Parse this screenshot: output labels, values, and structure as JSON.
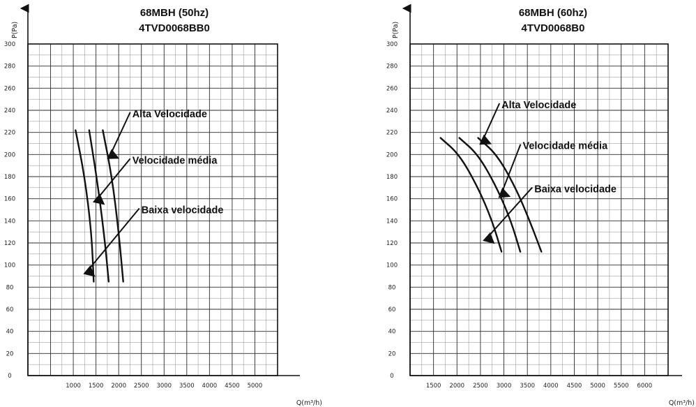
{
  "chart_data": [
    {
      "type": "line",
      "title": "68MBH (50hz)",
      "subtitle": "4TVD0068BB0",
      "xlabel": "Q(m³/h)",
      "ylabel": "P(Pa)",
      "x_ticks": [
        1000,
        1500,
        2000,
        2500,
        3000,
        3500,
        4000,
        4500,
        5000
      ],
      "y_ticks": [
        0,
        20,
        40,
        60,
        80,
        100,
        120,
        140,
        160,
        180,
        200,
        220,
        240,
        260,
        280,
        300
      ],
      "xlim": [
        0,
        5500
      ],
      "ylim": [
        0,
        300
      ],
      "grid": true,
      "series": [
        {
          "name": "Baixa velocidade",
          "x": [
            1050,
            1250,
            1400,
            1450
          ],
          "y": [
            222,
            180,
            130,
            85
          ]
        },
        {
          "name": "Velocidade média",
          "x": [
            1350,
            1550,
            1700,
            1780
          ],
          "y": [
            222,
            170,
            120,
            85
          ]
        },
        {
          "name": "Alta Velocidade",
          "x": [
            1650,
            1850,
            2000,
            2100
          ],
          "y": [
            222,
            180,
            130,
            85
          ]
        }
      ],
      "annotations": [
        {
          "text": "Alta Velocidade",
          "x": 2300,
          "y": 237,
          "target": [
            1820,
            200
          ]
        },
        {
          "text": "Velocidade média",
          "x": 2300,
          "y": 195,
          "target": [
            1530,
            160
          ]
        },
        {
          "text": "Baixa velocidade",
          "x": 2500,
          "y": 150,
          "target": [
            1320,
            95
          ]
        }
      ]
    },
    {
      "type": "line",
      "title": "68MBH (60hz)",
      "subtitle": "4TVD0068B0",
      "xlabel": "Q(m³/h)",
      "ylabel": "P(Pa)",
      "x_ticks": [
        1500,
        2000,
        2500,
        3000,
        3500,
        4000,
        4500,
        5000,
        5500,
        6000
      ],
      "y_ticks": [
        0,
        20,
        40,
        60,
        80,
        100,
        120,
        140,
        160,
        180,
        200,
        220,
        240,
        260,
        280,
        300
      ],
      "xlim": [
        1000,
        6500
      ],
      "ylim": [
        0,
        300
      ],
      "grid": true,
      "series": [
        {
          "name": "Baixa velocidade",
          "x": [
            1650,
            2050,
            2450,
            2750,
            2950
          ],
          "y": [
            215,
            200,
            170,
            140,
            112
          ]
        },
        {
          "name": "Velocidade média",
          "x": [
            2050,
            2450,
            2850,
            3150,
            3350
          ],
          "y": [
            215,
            200,
            170,
            140,
            112
          ]
        },
        {
          "name": "Alta Velocidade",
          "x": [
            2450,
            2850,
            3250,
            3550,
            3800
          ],
          "y": [
            215,
            200,
            170,
            140,
            112
          ]
        }
      ],
      "annotations": [
        {
          "text": "Alta Velocidade",
          "x": 2950,
          "y": 245,
          "target": [
            2550,
            213
          ]
        },
        {
          "text": "Velocidade média",
          "x": 3400,
          "y": 208,
          "target": [
            2950,
            165
          ]
        },
        {
          "text": "Baixa velocidade",
          "x": 3650,
          "y": 169,
          "target": [
            2650,
            125
          ]
        }
      ]
    }
  ]
}
